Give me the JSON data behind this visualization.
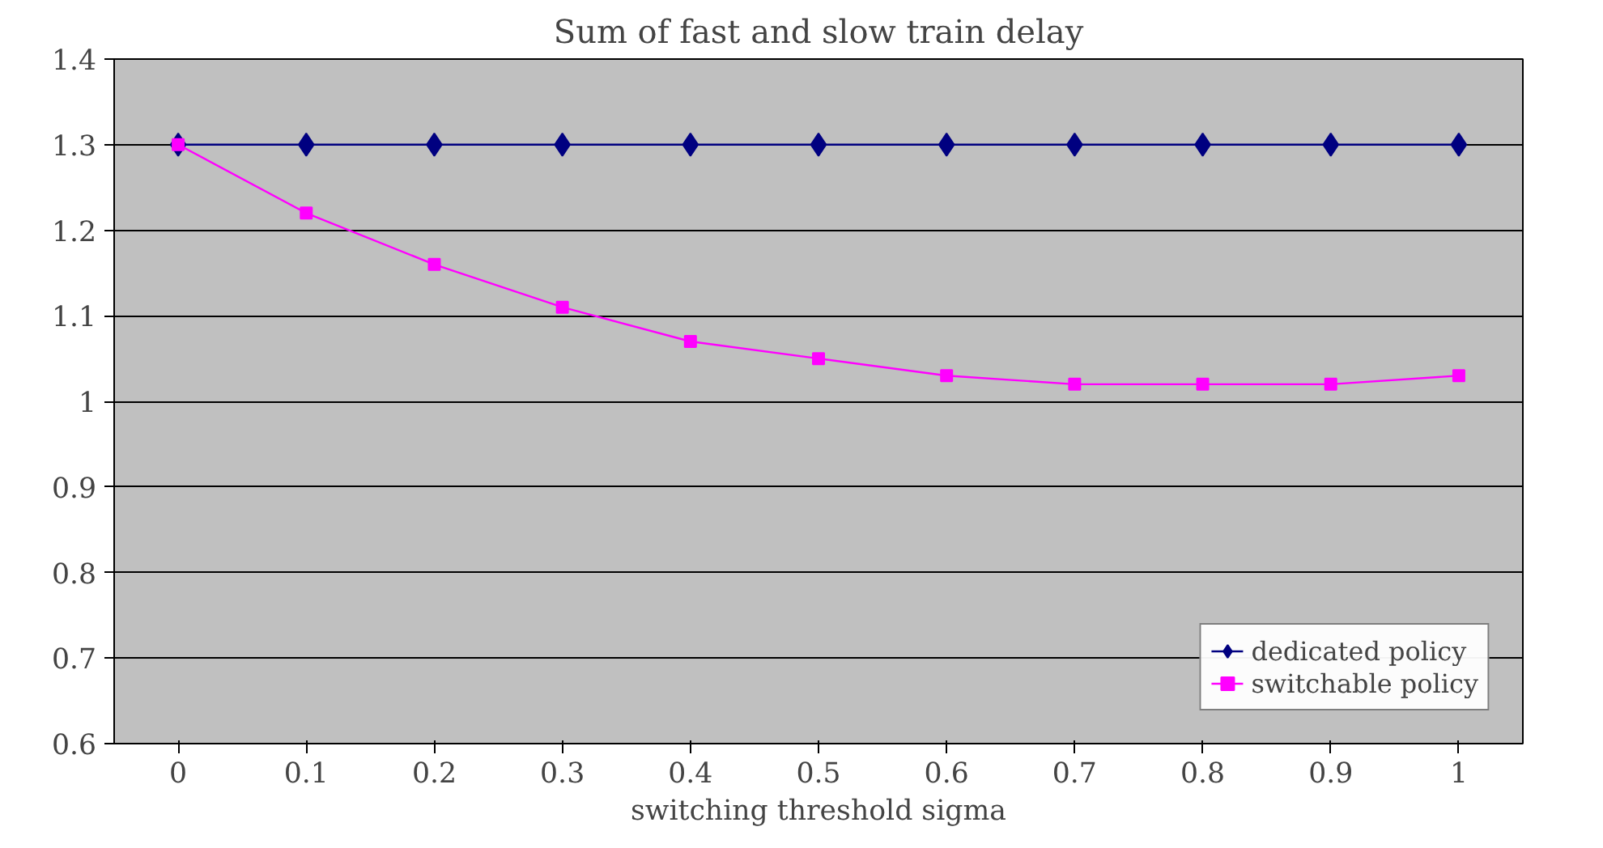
{
  "chart_data": {
    "type": "line",
    "title": "Sum of fast and slow train delay",
    "xlabel": "switching threshold sigma",
    "categories": [
      "0",
      "0.1",
      "0.2",
      "0.3",
      "0.4",
      "0.5",
      "0.6",
      "0.7",
      "0.8",
      "0.9",
      "1"
    ],
    "series": [
      {
        "name": "dedicated policy",
        "color": "#000080",
        "marker": "diamond",
        "values": [
          1.3,
          1.3,
          1.3,
          1.3,
          1.3,
          1.3,
          1.3,
          1.3,
          1.3,
          1.3,
          1.3
        ]
      },
      {
        "name": "switchable policy",
        "color": "#ff00ff",
        "marker": "square",
        "values": [
          1.3,
          1.22,
          1.16,
          1.11,
          1.07,
          1.05,
          1.03,
          1.02,
          1.02,
          1.02,
          1.03
        ]
      }
    ],
    "ylim": [
      0.6,
      1.4
    ],
    "yticks": [
      0.6,
      0.7,
      0.8,
      0.9,
      1,
      1.1,
      1.2,
      1.3,
      1.4
    ],
    "grid": "y",
    "legend": "bottom right"
  }
}
